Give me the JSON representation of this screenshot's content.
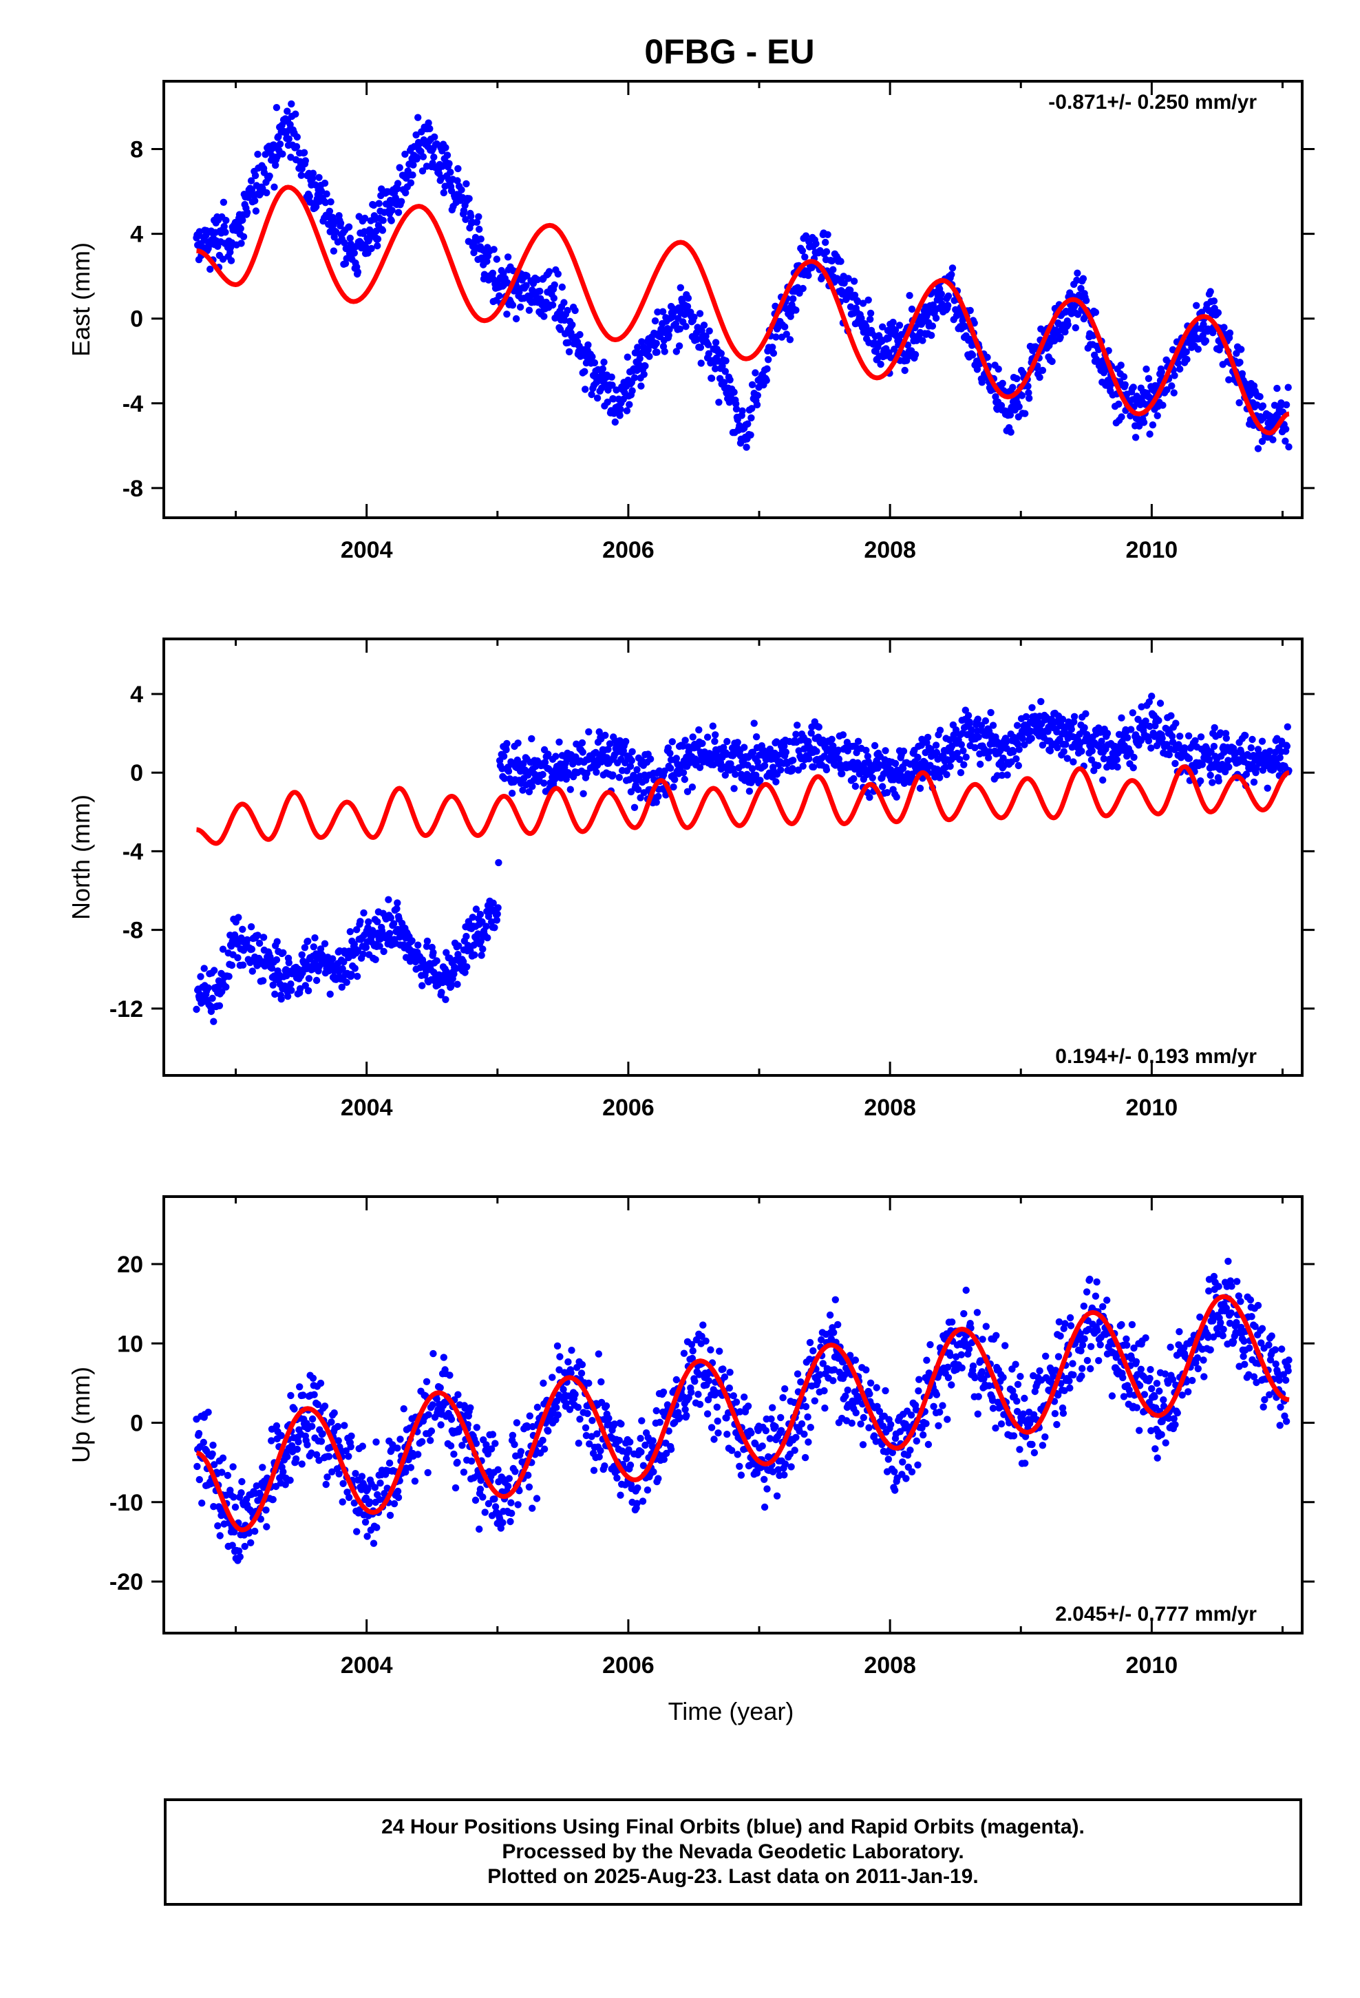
{
  "title": "0FBG - EU",
  "xlabel": "Time (year)",
  "footer": {
    "line1": "24 Hour Positions Using Final Orbits (blue) and Rapid Orbits (magenta).",
    "line2": "Processed by the Nevada Geodetic Laboratory.",
    "line3": "Plotted on 2025-Aug-23. Last data on 2011-Jan-19."
  },
  "colors": {
    "points": "#0000ff",
    "model": "#ff0000",
    "frame": "#000000"
  },
  "chart_data": [
    {
      "type": "scatter",
      "name": "east",
      "ylabel": "East (mm)",
      "rate_label": "-0.871+/- 0.250 mm/yr",
      "rate_placement": "top-right",
      "xlim": [
        2002.45,
        2011.15
      ],
      "ylim": [
        -9.4,
        11.2
      ],
      "yticks": [
        -8,
        -4,
        0,
        4,
        8
      ],
      "xticks": [
        2004,
        2006,
        2008,
        2010
      ],
      "data_start": 2002.7,
      "data_end": 2011.05,
      "model": {
        "x": [
          2002.7,
          2003.0,
          2003.4,
          2003.9,
          2004.4,
          2004.9,
          2005.4,
          2005.9,
          2006.4,
          2006.9,
          2007.4,
          2007.9,
          2008.4,
          2008.9,
          2009.4,
          2009.9,
          2010.4,
          2010.9,
          2011.05
        ],
        "y": [
          3.2,
          1.6,
          6.2,
          0.8,
          5.3,
          -0.1,
          4.4,
          -1.0,
          3.6,
          -1.9,
          2.7,
          -2.8,
          1.8,
          -3.7,
          0.9,
          -4.5,
          0.1,
          -5.4,
          -4.5
        ]
      },
      "points": {
        "trend": [
          [
            2002.7,
            3.4
          ],
          [
            2003.0,
            4.0
          ],
          [
            2003.25,
            7.5
          ],
          [
            2003.4,
            9.2
          ],
          [
            2003.6,
            6.0
          ],
          [
            2003.9,
            3.0
          ],
          [
            2004.2,
            5.5
          ],
          [
            2004.45,
            8.3
          ],
          [
            2004.7,
            6.0
          ],
          [
            2005.0,
            1.5
          ],
          [
            2005.4,
            1.2
          ],
          [
            2005.7,
            -2.0
          ],
          [
            2005.9,
            -4.2
          ],
          [
            2006.2,
            -1.0
          ],
          [
            2006.45,
            0.5
          ],
          [
            2006.7,
            -2.5
          ],
          [
            2006.9,
            -5.5
          ],
          [
            2007.1,
            -1.0
          ],
          [
            2007.4,
            3.5
          ],
          [
            2007.6,
            2.0
          ],
          [
            2007.9,
            -1.5
          ],
          [
            2008.2,
            -0.8
          ],
          [
            2008.45,
            1.5
          ],
          [
            2008.7,
            -2.0
          ],
          [
            2008.9,
            -4.5
          ],
          [
            2009.2,
            -1.0
          ],
          [
            2009.45,
            1.0
          ],
          [
            2009.7,
            -3.0
          ],
          [
            2009.9,
            -4.5
          ],
          [
            2010.2,
            -2.0
          ],
          [
            2010.45,
            0.5
          ],
          [
            2010.7,
            -3.0
          ],
          [
            2010.85,
            -5.0
          ],
          [
            2011.05,
            -4.5
          ]
        ],
        "scatter": 1.0
      }
    },
    {
      "type": "scatter",
      "name": "north",
      "ylabel": "North (mm)",
      "rate_label": "0.194+/- 0.193 mm/yr",
      "rate_placement": "bottom-right",
      "xlim": [
        2002.45,
        2011.15
      ],
      "ylim": [
        -15.4,
        6.8
      ],
      "yticks": [
        -12,
        -8,
        -4,
        0,
        4
      ],
      "xticks": [
        2004,
        2006,
        2008,
        2010
      ],
      "data_start": 2002.7,
      "data_end": 2011.05,
      "model": {
        "x": [
          2002.7,
          2002.85,
          2003.05,
          2003.25,
          2003.45,
          2003.65,
          2003.85,
          2004.05,
          2004.25,
          2004.45,
          2004.65,
          2004.85,
          2005.05,
          2005.25,
          2005.45,
          2005.65,
          2005.85,
          2006.05,
          2006.25,
          2006.45,
          2006.65,
          2006.85,
          2007.05,
          2007.25,
          2007.45,
          2007.65,
          2007.85,
          2008.05,
          2008.25,
          2008.45,
          2008.65,
          2008.85,
          2009.05,
          2009.25,
          2009.45,
          2009.65,
          2009.85,
          2010.05,
          2010.25,
          2010.45,
          2010.65,
          2010.85,
          2011.05
        ],
        "y": [
          -2.9,
          -3.6,
          -1.6,
          -3.4,
          -1.0,
          -3.3,
          -1.5,
          -3.3,
          -0.8,
          -3.2,
          -1.2,
          -3.2,
          -1.2,
          -3.1,
          -0.8,
          -3.0,
          -1.0,
          -2.8,
          -0.4,
          -2.8,
          -0.8,
          -2.7,
          -0.6,
          -2.6,
          -0.2,
          -2.6,
          -0.6,
          -2.5,
          0.0,
          -2.4,
          -0.6,
          -2.3,
          -0.3,
          -2.3,
          0.2,
          -2.2,
          -0.4,
          -2.1,
          0.3,
          -2.0,
          -0.2,
          -1.9,
          0.0
        ]
      },
      "points": {
        "trend": [
          [
            2002.7,
            -11.0
          ],
          [
            2002.85,
            -11.5
          ],
          [
            2003.0,
            -8.5
          ],
          [
            2003.2,
            -9.5
          ],
          [
            2003.4,
            -10.5
          ],
          [
            2003.6,
            -9.5
          ],
          [
            2003.8,
            -10.0
          ],
          [
            2004.0,
            -8.5
          ],
          [
            2004.2,
            -7.5
          ],
          [
            2004.4,
            -9.5
          ],
          [
            2004.6,
            -10.5
          ],
          [
            2004.8,
            -8.5
          ],
          [
            2004.95,
            -7.5
          ],
          [
            2005.0,
            -7.3
          ],
          [
            2005.02,
            0.5
          ],
          [
            2005.3,
            0.0
          ],
          [
            2005.6,
            0.5
          ],
          [
            2005.9,
            1.0
          ],
          [
            2006.2,
            -0.5
          ],
          [
            2006.5,
            1.0
          ],
          [
            2006.8,
            0.5
          ],
          [
            2007.1,
            0.5
          ],
          [
            2007.4,
            1.5
          ],
          [
            2007.7,
            0.5
          ],
          [
            2008.0,
            0.0
          ],
          [
            2008.3,
            0.5
          ],
          [
            2008.6,
            2.0
          ],
          [
            2008.9,
            1.0
          ],
          [
            2009.1,
            2.5
          ],
          [
            2009.4,
            2.0
          ],
          [
            2009.7,
            1.0
          ],
          [
            2010.0,
            2.5
          ],
          [
            2010.3,
            0.5
          ],
          [
            2010.6,
            1.0
          ],
          [
            2010.8,
            0.5
          ],
          [
            2011.05,
            1.0
          ]
        ],
        "scatter": 1.0
      }
    },
    {
      "type": "scatter",
      "name": "up",
      "ylabel": "Up (mm)",
      "rate_label": "2.045+/- 0.777 mm/yr",
      "rate_placement": "bottom-right",
      "xlim": [
        2002.45,
        2011.15
      ],
      "ylim": [
        -26.5,
        28.5
      ],
      "yticks": [
        -20,
        -10,
        0,
        10,
        20
      ],
      "xticks": [
        2004,
        2006,
        2008,
        2010
      ],
      "data_start": 2002.7,
      "data_end": 2011.05,
      "model": {
        "x": [
          2002.7,
          2003.05,
          2003.55,
          2004.05,
          2004.55,
          2005.05,
          2005.55,
          2006.05,
          2006.55,
          2007.05,
          2007.55,
          2008.05,
          2008.55,
          2009.05,
          2009.55,
          2010.05,
          2010.55,
          2011.05
        ],
        "y": [
          -3.8,
          -13.5,
          1.8,
          -11.3,
          3.8,
          -9.3,
          5.7,
          -7.2,
          7.8,
          -5.2,
          9.8,
          -3.2,
          11.8,
          -1.2,
          13.9,
          0.9,
          15.9,
          2.9
        ]
      },
      "points": {
        "trend": [
          [
            2002.7,
            -3.0
          ],
          [
            2003.05,
            -13.0
          ],
          [
            2003.55,
            1.5
          ],
          [
            2004.05,
            -10.5
          ],
          [
            2004.55,
            3.5
          ],
          [
            2005.05,
            -9.0
          ],
          [
            2005.55,
            5.0
          ],
          [
            2006.05,
            -7.0
          ],
          [
            2006.55,
            7.5
          ],
          [
            2007.05,
            -5.5
          ],
          [
            2007.55,
            9.0
          ],
          [
            2008.05,
            -3.5
          ],
          [
            2008.55,
            11.0
          ],
          [
            2009.05,
            -1.0
          ],
          [
            2009.55,
            13.5
          ],
          [
            2010.05,
            1.5
          ],
          [
            2010.55,
            15.5
          ],
          [
            2011.05,
            3.0
          ]
        ],
        "scatter": 4.5
      }
    }
  ]
}
